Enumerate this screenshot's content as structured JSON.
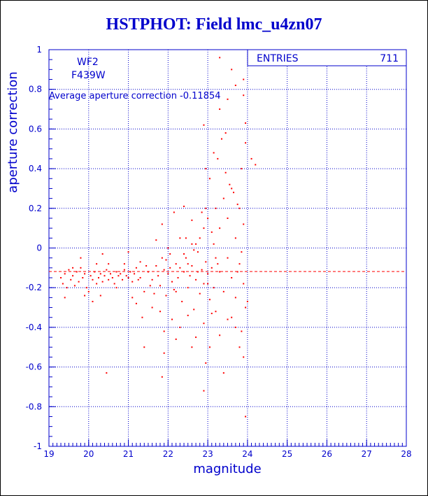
{
  "header": {
    "title": "HSTPHOT: Field lmc_u4zn07"
  },
  "colors": {
    "axis": "#0000cc",
    "points": "#ff0000",
    "mean_line": "#ff0000"
  },
  "chart_data": {
    "type": "scatter",
    "title": "HSTPHOT: Field lmc_u4zn07",
    "xlabel": "magnitude",
    "ylabel": "aperture correction",
    "xlim": [
      19,
      28
    ],
    "ylim": [
      -1,
      1
    ],
    "x_ticks": [
      "19",
      "20",
      "21",
      "22",
      "23",
      "24",
      "25",
      "26",
      "27",
      "28"
    ],
    "y_ticks": [
      "-1",
      "-0.8",
      "-0.6",
      "-0.4",
      "-0.2",
      "0",
      "0.2",
      "0.4",
      "0.6",
      "0.8",
      "1"
    ],
    "grid": true,
    "annotations": {
      "camera": "WF2",
      "filter": "F439W",
      "average_text": "Average aperture correction -0.11854"
    },
    "mean_value": -0.11854,
    "stats_box": {
      "label": "ENTRIES",
      "value": "711"
    },
    "points": [
      [
        19.3,
        -0.15
      ],
      [
        19.35,
        -0.18
      ],
      [
        19.4,
        -0.13
      ],
      [
        19.45,
        -0.2
      ],
      [
        19.5,
        -0.11
      ],
      [
        19.55,
        -0.16
      ],
      [
        19.6,
        -0.14
      ],
      [
        19.65,
        -0.19
      ],
      [
        19.7,
        -0.12
      ],
      [
        19.75,
        -0.17
      ],
      [
        19.8,
        -0.1
      ],
      [
        19.85,
        -0.15
      ],
      [
        19.9,
        -0.13
      ],
      [
        19.95,
        -0.2
      ],
      [
        20.0,
        -0.22
      ],
      [
        20.05,
        -0.14
      ],
      [
        20.1,
        -0.16
      ],
      [
        20.15,
        -0.12
      ],
      [
        20.2,
        -0.18
      ],
      [
        20.25,
        -0.15
      ],
      [
        20.3,
        -0.13
      ],
      [
        20.35,
        -0.17
      ],
      [
        20.4,
        -0.14
      ],
      [
        20.45,
        -0.11
      ],
      [
        20.5,
        -0.16
      ],
      [
        20.55,
        -0.13
      ],
      [
        20.6,
        -0.15
      ],
      [
        20.65,
        -0.18
      ],
      [
        20.7,
        -0.12
      ],
      [
        20.75,
        -0.14
      ],
      [
        20.8,
        -0.13
      ],
      [
        20.85,
        -0.16
      ],
      [
        20.9,
        -0.11
      ],
      [
        20.95,
        -0.14
      ],
      [
        21.0,
        -0.15
      ],
      [
        21.05,
        -0.12
      ],
      [
        21.1,
        -0.17
      ],
      [
        21.15,
        -0.13
      ],
      [
        21.2,
        -0.1
      ],
      [
        21.25,
        -0.16
      ],
      [
        19.4,
        -0.25
      ],
      [
        19.6,
        -0.1
      ],
      [
        19.8,
        -0.05
      ],
      [
        20.1,
        -0.27
      ],
      [
        20.3,
        -0.24
      ],
      [
        20.5,
        -0.08
      ],
      [
        20.7,
        -0.2
      ],
      [
        20.9,
        -0.08
      ],
      [
        21.1,
        -0.25
      ],
      [
        21.3,
        -0.07
      ],
      [
        20.45,
        -0.63
      ],
      [
        20.35,
        -0.03
      ],
      [
        19.9,
        -0.24
      ],
      [
        20.2,
        -0.08
      ],
      [
        21.0,
        -0.02
      ],
      [
        21.2,
        -0.28
      ],
      [
        21.4,
        -0.22
      ],
      [
        21.5,
        -0.12
      ],
      [
        21.6,
        -0.16
      ],
      [
        21.7,
        -0.09
      ],
      [
        21.75,
        -0.14
      ],
      [
        21.8,
        -0.19
      ],
      [
        21.85,
        -0.05
      ],
      [
        21.9,
        -0.11
      ],
      [
        21.95,
        -0.24
      ],
      [
        22.0,
        -0.13
      ],
      [
        22.05,
        -0.03
      ],
      [
        22.1,
        -0.17
      ],
      [
        22.15,
        -0.21
      ],
      [
        22.2,
        -0.08
      ],
      [
        22.25,
        -0.15
      ],
      [
        22.3,
        -0.1
      ],
      [
        22.35,
        -0.27
      ],
      [
        22.4,
        -0.12
      ],
      [
        22.45,
        -0.05
      ],
      [
        22.5,
        -0.2
      ],
      [
        22.55,
        -0.14
      ],
      [
        22.6,
        -0.09
      ],
      [
        22.65,
        -0.31
      ],
      [
        22.7,
        -0.16
      ],
      [
        22.75,
        -0.02
      ],
      [
        22.8,
        -0.23
      ],
      [
        22.85,
        -0.11
      ],
      [
        22.9,
        -0.18
      ],
      [
        22.95,
        -0.07
      ],
      [
        23.0,
        -0.13
      ],
      [
        23.05,
        -0.26
      ],
      [
        23.1,
        -0.1
      ],
      [
        23.15,
        -0.2
      ],
      [
        23.2,
        -0.05
      ],
      [
        21.6,
        -0.3
      ],
      [
        21.8,
        -0.32
      ],
      [
        21.9,
        -0.42
      ],
      [
        22.1,
        -0.36
      ],
      [
        22.3,
        -0.4
      ],
      [
        22.5,
        -0.34
      ],
      [
        22.7,
        -0.45
      ],
      [
        22.9,
        -0.38
      ],
      [
        23.1,
        -0.33
      ],
      [
        23.3,
        -0.44
      ],
      [
        23.5,
        -0.36
      ],
      [
        23.7,
        -0.4
      ],
      [
        23.85,
        -0.42
      ],
      [
        21.4,
        -0.5
      ],
      [
        21.9,
        -0.53
      ],
      [
        22.2,
        -0.46
      ],
      [
        22.6,
        -0.5
      ],
      [
        22.95,
        -0.58
      ],
      [
        23.4,
        -0.63
      ],
      [
        23.9,
        -0.55
      ],
      [
        21.85,
        -0.65
      ],
      [
        22.9,
        -0.72
      ],
      [
        23.05,
        -0.5
      ],
      [
        23.95,
        -0.85
      ],
      [
        23.8,
        -0.5
      ],
      [
        22.4,
        -0.03
      ],
      [
        22.45,
        0.05
      ],
      [
        22.6,
        0.02
      ],
      [
        22.8,
        0.05
      ],
      [
        22.9,
        0.1
      ],
      [
        23.0,
        0.15
      ],
      [
        23.1,
        0.08
      ],
      [
        23.2,
        0.2
      ],
      [
        23.3,
        0.1
      ],
      [
        23.4,
        0.25
      ],
      [
        23.5,
        0.15
      ],
      [
        23.6,
        0.3
      ],
      [
        23.7,
        0.05
      ],
      [
        23.8,
        0.2
      ],
      [
        23.9,
        0.12
      ],
      [
        22.7,
        0.02
      ],
      [
        22.85,
        0.18
      ],
      [
        22.95,
        0.2
      ],
      [
        23.05,
        0.35
      ],
      [
        23.15,
        0.02
      ],
      [
        23.25,
        0.45
      ],
      [
        23.35,
        0.55
      ],
      [
        23.45,
        0.38
      ],
      [
        23.55,
        0.32
      ],
      [
        23.65,
        0.28
      ],
      [
        23.75,
        0.22
      ],
      [
        23.85,
        0.4
      ],
      [
        23.95,
        0.53
      ],
      [
        24.1,
        0.45
      ],
      [
        24.2,
        0.42
      ],
      [
        23.3,
        0.96
      ],
      [
        23.5,
        0.75
      ],
      [
        23.6,
        0.9
      ],
      [
        23.9,
        0.85
      ],
      [
        23.95,
        0.63
      ],
      [
        23.45,
        0.58
      ],
      [
        23.3,
        0.7
      ],
      [
        23.15,
        0.48
      ],
      [
        22.95,
        0.4
      ],
      [
        23.7,
        0.82
      ],
      [
        23.9,
        0.77
      ],
      [
        22.9,
        0.62
      ],
      [
        22.6,
        0.14
      ],
      [
        22.3,
        0.05
      ],
      [
        22.0,
        0.0
      ],
      [
        21.85,
        0.12
      ],
      [
        22.15,
        0.18
      ],
      [
        22.4,
        0.21
      ],
      [
        21.7,
        0.04
      ],
      [
        23.5,
        -0.05
      ],
      [
        23.6,
        -0.15
      ],
      [
        23.7,
        -0.25
      ],
      [
        23.8,
        -0.08
      ],
      [
        23.9,
        -0.18
      ],
      [
        23.95,
        -0.3
      ],
      [
        23.4,
        -0.22
      ],
      [
        23.3,
        -0.12
      ],
      [
        23.2,
        -0.32
      ],
      [
        23.6,
        -0.35
      ],
      [
        23.75,
        -0.12
      ],
      [
        24.0,
        -0.27
      ],
      [
        23.85,
        -0.02
      ],
      [
        21.3,
        -0.15
      ],
      [
        21.45,
        -0.09
      ],
      [
        21.55,
        -0.19
      ],
      [
        21.65,
        -0.23
      ],
      [
        21.35,
        -0.35
      ],
      [
        21.95,
        -0.06
      ],
      [
        22.05,
        -0.1
      ],
      [
        22.5,
        -0.08
      ],
      [
        22.65,
        -0.01
      ],
      [
        22.2,
        -0.22
      ],
      [
        22.75,
        -0.12
      ],
      [
        23.0,
        -0.18
      ],
      [
        23.25,
        -0.08
      ]
    ]
  }
}
